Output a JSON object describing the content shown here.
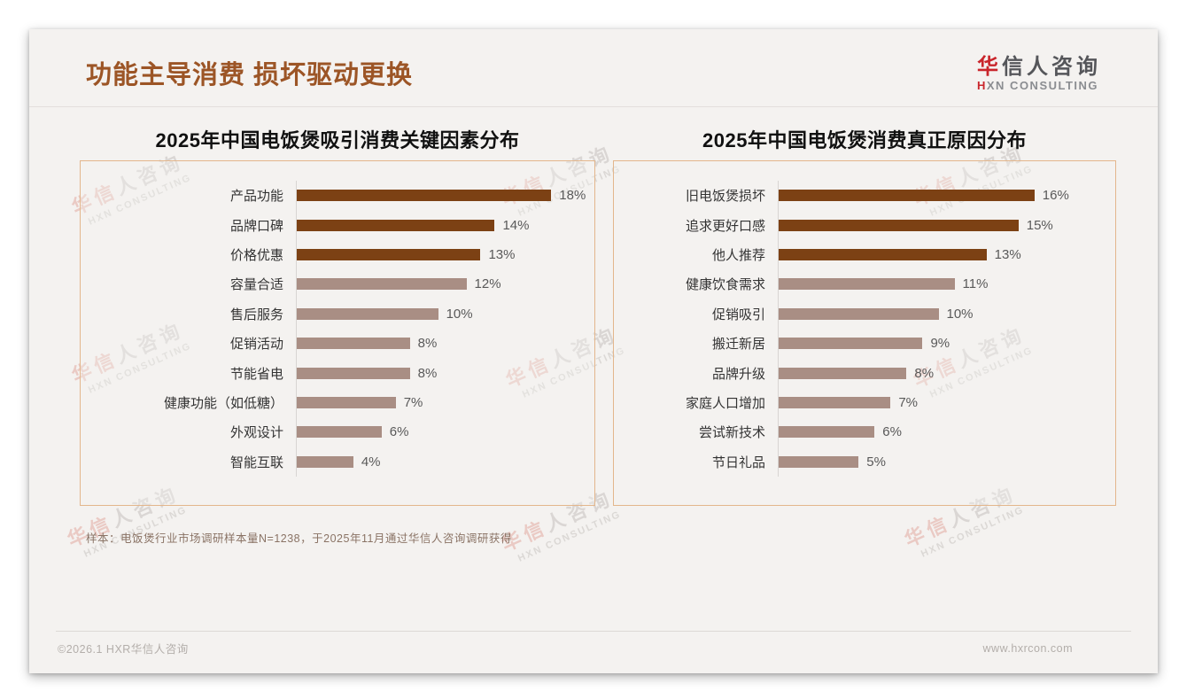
{
  "page": {
    "title": "功能主导消费 损坏驱动更换",
    "logo": {
      "brand_first": "华",
      "brand_rest": "信人咨询",
      "sub_first": "H",
      "sub_rest": "XN CONSULTING"
    },
    "watermark": {
      "line1": "华信人咨询",
      "line2": "HXN CONSULTING"
    },
    "note": "样本：电饭煲行业市场调研样本量N=1238，于2025年11月通过华信人咨询调研获得",
    "footer": {
      "left": "©2026.1 HXR华信人咨询",
      "right": "www.hxrcon.com"
    }
  },
  "colors": {
    "title_brown": "#9c5526",
    "bar_dark": "#7c4114",
    "bar_light": "#a98e84",
    "box_border": "#e3b68c",
    "logo_red": "#c9252b"
  },
  "chart_data": [
    {
      "type": "bar",
      "orientation": "horizontal",
      "title": "2025年中国电饭煲吸引消费关键因素分布",
      "categories": [
        "产品功能",
        "品牌口碑",
        "价格优惠",
        "容量合适",
        "售后服务",
        "促销活动",
        "节能省电",
        "健康功能（如低糖）",
        "外观设计",
        "智能互联"
      ],
      "values": [
        18,
        14,
        13,
        12,
        10,
        8,
        8,
        7,
        6,
        4
      ],
      "value_suffix": "%",
      "axis_max": 20,
      "highlight_count": 3,
      "grid": false,
      "legend": false,
      "value_labels": "outside-end"
    },
    {
      "type": "bar",
      "orientation": "horizontal",
      "title": "2025年中国电饭煲消费真正原因分布",
      "categories": [
        "旧电饭煲损坏",
        "追求更好口感",
        "他人推荐",
        "健康饮食需求",
        "促销吸引",
        "搬迁新居",
        "品牌升级",
        "家庭人口增加",
        "尝试新技术",
        "节日礼品"
      ],
      "values": [
        16,
        15,
        13,
        11,
        10,
        9,
        8,
        7,
        6,
        5
      ],
      "value_suffix": "%",
      "axis_max": 20,
      "highlight_count": 3,
      "grid": false,
      "legend": false,
      "value_labels": "outside-end"
    }
  ]
}
